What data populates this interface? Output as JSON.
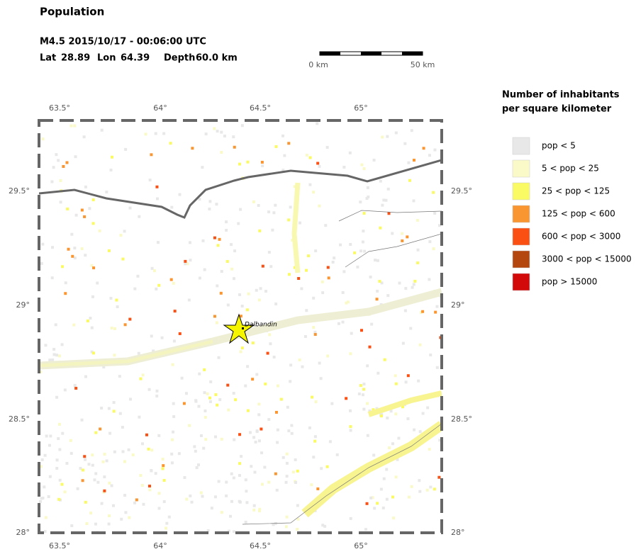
{
  "header": {
    "title": "Population",
    "event": "M4.5  2015/10/17 - 00:06:00 UTC",
    "lat_label": "Lat",
    "lat": "28.89",
    "lon_label": "Lon",
    "lon": "64.39",
    "depth_label": "Depth",
    "depth": "60.0 km"
  },
  "scale_bar": {
    "start": "0 km",
    "end": "50 km"
  },
  "map": {
    "longitude_labels": [
      "63.5°",
      "64°",
      "64.5°",
      "65°"
    ],
    "latitude_labels": [
      "29.5°",
      "29°",
      "28.5°",
      "28°"
    ],
    "place": "Dalbandin"
  },
  "legend": {
    "title": [
      "Number of inhabitants",
      "per square kilometer"
    ],
    "items": [
      {
        "label": "pop < 5",
        "color": "#e8e8e8"
      },
      {
        "label": "5 < pop < 25",
        "color": "#fafac8"
      },
      {
        "label": "25 < pop < 125",
        "color": "#fafa64"
      },
      {
        "label": "125 < pop < 600",
        "color": "#fa9632"
      },
      {
        "label": "600 < pop < 3000",
        "color": "#fa5014"
      },
      {
        "label": "3000 < pop < 15000",
        "color": "#b4460f"
      },
      {
        "label": "pop > 15000",
        "color": "#d20a0a"
      }
    ]
  }
}
